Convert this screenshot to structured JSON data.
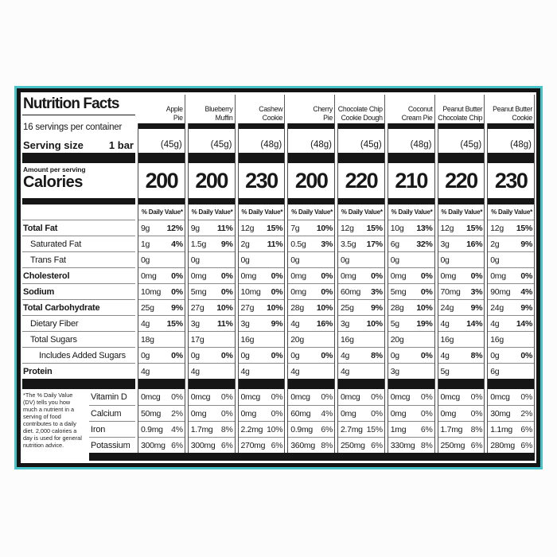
{
  "colors": {
    "frame_teal": "#49c3ca",
    "bar_black": "#161616",
    "hairline": "#8a8a8a"
  },
  "label_panel": {
    "title": "Nutrition Facts",
    "servings_per_container": "16 servings per container",
    "serving_size_label": "Serving size",
    "serving_size_value": "1 bar",
    "amount_per_serving": "Amount per serving",
    "calories_label": "Calories",
    "daily_value_header": "% Daily Value*",
    "footnote": "*The % Daily Value (DV) tells you how much a nutrient in a serving of food contributes to a daily diet. 2,000 calories a day is used for general nutrition advice."
  },
  "nutrient_rows": [
    {
      "label": "Total Fat",
      "bold": true,
      "indent": 0
    },
    {
      "label": "Saturated Fat",
      "bold": false,
      "indent": 1
    },
    {
      "label": "Trans Fat",
      "bold": false,
      "indent": 1
    },
    {
      "label": "Cholesterol",
      "bold": true,
      "indent": 0
    },
    {
      "label": "Sodium",
      "bold": true,
      "indent": 0
    },
    {
      "label": "Total Carbohydrate",
      "bold": true,
      "indent": 0
    },
    {
      "label": "Dietary Fiber",
      "bold": false,
      "indent": 1
    },
    {
      "label": "Total Sugars",
      "bold": false,
      "indent": 1
    },
    {
      "label": "Includes Added Sugars",
      "bold": false,
      "indent": 2
    },
    {
      "label": "Protein",
      "bold": true,
      "indent": 0
    }
  ],
  "micronutrient_rows": [
    "Vitamin D",
    "Calcium",
    "Iron",
    "Potassium"
  ],
  "products": [
    {
      "name": "Apple\nPie",
      "weight": "(45g)",
      "calories": "200",
      "values": [
        [
          "9g",
          "12%"
        ],
        [
          "1g",
          "4%"
        ],
        [
          "0g",
          ""
        ],
        [
          "0mg",
          "0%"
        ],
        [
          "10mg",
          "0%"
        ],
        [
          "25g",
          "9%"
        ],
        [
          "4g",
          "15%"
        ],
        [
          "18g",
          ""
        ],
        [
          "0g",
          "0%"
        ],
        [
          "4g",
          ""
        ]
      ],
      "micronutrients": [
        [
          "0mcg",
          "0%"
        ],
        [
          "50mg",
          "2%"
        ],
        [
          "0.9mg",
          "4%"
        ],
        [
          "300mg",
          "6%"
        ]
      ]
    },
    {
      "name": "Blueberry\nMuffin",
      "weight": "(45g)",
      "calories": "200",
      "values": [
        [
          "9g",
          "11%"
        ],
        [
          "1.5g",
          "9%"
        ],
        [
          "0g",
          ""
        ],
        [
          "0mg",
          "0%"
        ],
        [
          "5mg",
          "0%"
        ],
        [
          "27g",
          "10%"
        ],
        [
          "3g",
          "11%"
        ],
        [
          "17g",
          ""
        ],
        [
          "0g",
          "0%"
        ],
        [
          "4g",
          ""
        ]
      ],
      "micronutrients": [
        [
          "0mcg",
          "0%"
        ],
        [
          "0mg",
          "0%"
        ],
        [
          "1.7mg",
          "8%"
        ],
        [
          "300mg",
          "6%"
        ]
      ]
    },
    {
      "name": "Cashew\nCookie",
      "weight": "(48g)",
      "calories": "230",
      "values": [
        [
          "12g",
          "15%"
        ],
        [
          "2g",
          "11%"
        ],
        [
          "0g",
          ""
        ],
        [
          "0mg",
          "0%"
        ],
        [
          "10mg",
          "0%"
        ],
        [
          "27g",
          "10%"
        ],
        [
          "3g",
          "9%"
        ],
        [
          "16g",
          ""
        ],
        [
          "0g",
          "0%"
        ],
        [
          "4g",
          ""
        ]
      ],
      "micronutrients": [
        [
          "0mcg",
          "0%"
        ],
        [
          "0mg",
          "0%"
        ],
        [
          "2.2mg",
          "10%"
        ],
        [
          "270mg",
          "6%"
        ]
      ]
    },
    {
      "name": "Cherry\nPie",
      "weight": "(48g)",
      "calories": "200",
      "values": [
        [
          "7g",
          "10%"
        ],
        [
          "0.5g",
          "3%"
        ],
        [
          "0g",
          ""
        ],
        [
          "0mg",
          "0%"
        ],
        [
          "0mg",
          "0%"
        ],
        [
          "28g",
          "10%"
        ],
        [
          "4g",
          "16%"
        ],
        [
          "20g",
          ""
        ],
        [
          "0g",
          "0%"
        ],
        [
          "4g",
          ""
        ]
      ],
      "micronutrients": [
        [
          "0mcg",
          "0%"
        ],
        [
          "60mg",
          "4%"
        ],
        [
          "0.9mg",
          "6%"
        ],
        [
          "360mg",
          "8%"
        ]
      ]
    },
    {
      "name": "Chocolate Chip\nCookie Dough",
      "weight": "(45g)",
      "calories": "220",
      "values": [
        [
          "12g",
          "15%"
        ],
        [
          "3.5g",
          "17%"
        ],
        [
          "0g",
          ""
        ],
        [
          "0mg",
          "0%"
        ],
        [
          "60mg",
          "3%"
        ],
        [
          "25g",
          "9%"
        ],
        [
          "3g",
          "10%"
        ],
        [
          "16g",
          ""
        ],
        [
          "4g",
          "8%"
        ],
        [
          "4g",
          ""
        ]
      ],
      "micronutrients": [
        [
          "0mcg",
          "0%"
        ],
        [
          "0mg",
          "0%"
        ],
        [
          "2.7mg",
          "15%"
        ],
        [
          "250mg",
          "6%"
        ]
      ]
    },
    {
      "name": "Coconut\nCream Pie",
      "weight": "(48g)",
      "calories": "210",
      "values": [
        [
          "10g",
          "13%"
        ],
        [
          "6g",
          "32%"
        ],
        [
          "0g",
          ""
        ],
        [
          "0mg",
          "0%"
        ],
        [
          "5mg",
          "0%"
        ],
        [
          "28g",
          "10%"
        ],
        [
          "5g",
          "19%"
        ],
        [
          "20g",
          ""
        ],
        [
          "0g",
          "0%"
        ],
        [
          "3g",
          ""
        ]
      ],
      "micronutrients": [
        [
          "0mcg",
          "0%"
        ],
        [
          "0mg",
          "0%"
        ],
        [
          "1mg",
          "6%"
        ],
        [
          "330mg",
          "8%"
        ]
      ]
    },
    {
      "name": "Peanut Butter\nChocolate Chip",
      "weight": "(45g)",
      "calories": "220",
      "values": [
        [
          "12g",
          "15%"
        ],
        [
          "3g",
          "16%"
        ],
        [
          "0g",
          ""
        ],
        [
          "0mg",
          "0%"
        ],
        [
          "70mg",
          "3%"
        ],
        [
          "24g",
          "9%"
        ],
        [
          "4g",
          "14%"
        ],
        [
          "16g",
          ""
        ],
        [
          "4g",
          "8%"
        ],
        [
          "5g",
          ""
        ]
      ],
      "micronutrients": [
        [
          "0mcg",
          "0%"
        ],
        [
          "0mg",
          "0%"
        ],
        [
          "1.7mg",
          "8%"
        ],
        [
          "250mg",
          "6%"
        ]
      ]
    },
    {
      "name": "Peanut Butter\nCookie",
      "weight": "(48g)",
      "calories": "230",
      "values": [
        [
          "12g",
          "15%"
        ],
        [
          "2g",
          "9%"
        ],
        [
          "0g",
          ""
        ],
        [
          "0mg",
          "0%"
        ],
        [
          "90mg",
          "4%"
        ],
        [
          "24g",
          "9%"
        ],
        [
          "4g",
          "14%"
        ],
        [
          "16g",
          ""
        ],
        [
          "0g",
          "0%"
        ],
        [
          "6g",
          ""
        ]
      ],
      "micronutrients": [
        [
          "0mcg",
          "0%"
        ],
        [
          "30mg",
          "2%"
        ],
        [
          "1.1mg",
          "6%"
        ],
        [
          "280mg",
          "6%"
        ]
      ]
    }
  ]
}
